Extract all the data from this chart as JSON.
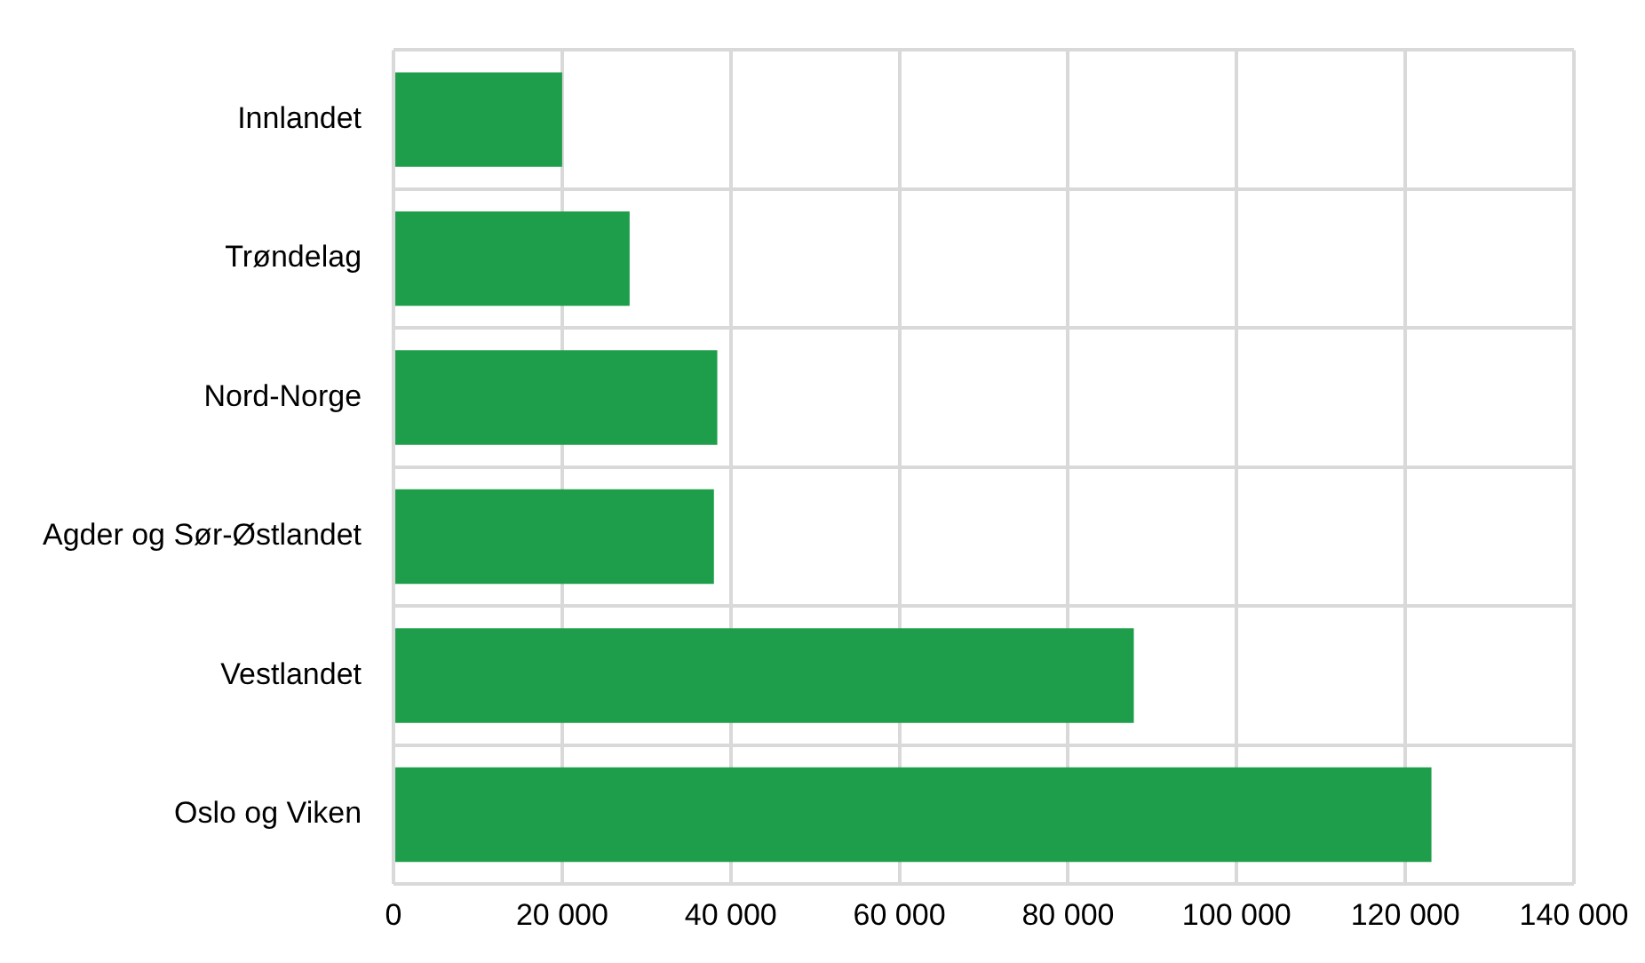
{
  "chart_data": {
    "type": "bar",
    "orientation": "horizontal",
    "categories": [
      "Innlandet",
      "Trøndelag",
      "Nord-Norge",
      "Agder og Sør-Østlandet",
      "Vestlandet",
      "Oslo og Viken"
    ],
    "values": [
      20000,
      28000,
      38400,
      38000,
      87800,
      123100
    ],
    "color": "#1e9e4a",
    "xlim": [
      0,
      140000
    ],
    "xticks": [
      {
        "value": 0,
        "label": "0"
      },
      {
        "value": 20000,
        "label": "20 000"
      },
      {
        "value": 40000,
        "label": "40 000"
      },
      {
        "value": 60000,
        "label": "60 000"
      },
      {
        "value": 80000,
        "label": "80 000"
      },
      {
        "value": 100000,
        "label": "100 000"
      },
      {
        "value": 120000,
        "label": "120 000"
      },
      {
        "value": 140000,
        "label": "140 000"
      }
    ],
    "grid": true,
    "legend": false
  }
}
